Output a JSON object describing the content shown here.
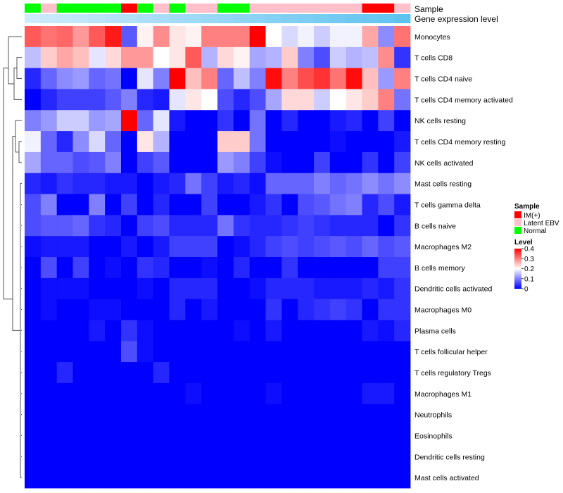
{
  "chart_data": {
    "type": "heatmap",
    "annotation_labels": [
      "Sample",
      "Gene expression level"
    ],
    "sample_legend": {
      "title": "Sample",
      "entries": [
        {
          "name": "IM(+)",
          "color": "#ff0000"
        },
        {
          "name": "Latent EBV",
          "color": "#ffc0cb"
        },
        {
          "name": "Normal",
          "color": "#00ff00"
        }
      ]
    },
    "color_legend": {
      "title": "Level",
      "ticks": [
        "0.4",
        "0.3",
        "0.2",
        "0.1",
        "0"
      ],
      "range": [
        0,
        0.4
      ],
      "colors": {
        "low": "#0000ff",
        "mid": "#ffffff",
        "high": "#ff0000"
      }
    },
    "sample_groups": [
      "Normal",
      "Latent EBV",
      "Normal",
      "Normal",
      "Normal",
      "Normal",
      "IM(+)",
      "Normal",
      "Latent EBV",
      "Normal",
      "Latent EBV",
      "Latent EBV",
      "Normal",
      "Normal",
      "Latent EBV",
      "Latent EBV",
      "Latent EBV",
      "Latent EBV",
      "Latent EBV",
      "Latent EBV",
      "Latent EBV",
      "IM(+)",
      "IM(+)",
      "Latent EBV"
    ],
    "expression_level": [
      0.05,
      0.07,
      0.09,
      0.11,
      0.13,
      0.15,
      0.17,
      0.19,
      0.21,
      0.23,
      0.25,
      0.27,
      0.29,
      0.31,
      0.33,
      0.35,
      0.37,
      0.39,
      0.41,
      0.43,
      0.45,
      0.47,
      0.49,
      0.51
    ],
    "rows": [
      "Monocytes",
      "T cells CD8",
      "T cells CD4 naive",
      "T cells CD4 memory activated",
      "NK cells resting",
      "T cells CD4 memory resting",
      "NK cells activated",
      "Mast cells resting",
      "T cells gamma delta",
      "B cells naive",
      "Macrophages M2",
      "B cells memory",
      "Dendritic cells activated",
      "Macrophages M0",
      "Plasma cells",
      "T cells follicular helper",
      "T cells regulatory  Tregs",
      "Macrophages M1",
      "Neutrophils",
      "Eosinophils",
      "Dendritic cells resting",
      "Mast cells activated"
    ],
    "values": [
      [
        0.33,
        0.31,
        0.32,
        0.28,
        0.33,
        0.38,
        0.07,
        0.21,
        0.29,
        0.22,
        0.21,
        0.3,
        0.3,
        0.3,
        0.4,
        0.2,
        0.17,
        0.19,
        0.16,
        0.19,
        0.19,
        0.27,
        0.11,
        0.31
      ],
      [
        0.15,
        0.24,
        0.27,
        0.25,
        0.18,
        0.23,
        0.28,
        0.28,
        0.2,
        0.22,
        0.33,
        0.14,
        0.23,
        0.21,
        0.13,
        0.14,
        0.24,
        0.1,
        0.06,
        0.16,
        0.14,
        0.15,
        0.29,
        0.04
      ],
      [
        0.03,
        0.08,
        0.11,
        0.12,
        0.08,
        0.09,
        0.0,
        0.18,
        0.1,
        0.4,
        0.25,
        0.3,
        0.08,
        0.15,
        0.1,
        0.39,
        0.3,
        0.34,
        0.36,
        0.31,
        0.39,
        0.25,
        0.12,
        0.3
      ],
      [
        0.0,
        0.03,
        0.05,
        0.05,
        0.05,
        0.07,
        0.1,
        0.03,
        0.02,
        0.18,
        0.22,
        0.2,
        0.06,
        0.03,
        0.06,
        0.13,
        0.23,
        0.23,
        0.16,
        0.2,
        0.22,
        0.24,
        0.3,
        0.09
      ],
      [
        0.1,
        0.12,
        0.16,
        0.16,
        0.12,
        0.13,
        0.4,
        0.08,
        0.18,
        0.02,
        0.0,
        0.0,
        0.04,
        0.0,
        0.09,
        0.0,
        0.03,
        0.0,
        0.0,
        0.02,
        0.03,
        0.0,
        0.05,
        0.0
      ],
      [
        0.19,
        0.08,
        0.03,
        0.11,
        0.17,
        0.08,
        0.0,
        0.22,
        0.14,
        0.0,
        0.0,
        0.0,
        0.24,
        0.24,
        0.09,
        0.0,
        0.0,
        0.0,
        0.0,
        0.01,
        0.0,
        0.0,
        0.0,
        0.02
      ],
      [
        0.13,
        0.08,
        0.08,
        0.06,
        0.07,
        0.1,
        0.0,
        0.05,
        0.07,
        0.0,
        0.0,
        0.0,
        0.12,
        0.1,
        0.05,
        0.01,
        0.0,
        0.0,
        0.05,
        0.0,
        0.0,
        0.04,
        0.0,
        0.05
      ],
      [
        0.03,
        0.02,
        0.04,
        0.03,
        0.03,
        0.02,
        0.02,
        0.0,
        0.02,
        0.03,
        0.09,
        0.05,
        0.02,
        0.03,
        0.01,
        0.08,
        0.08,
        0.08,
        0.1,
        0.08,
        0.09,
        0.11,
        0.09,
        0.11
      ],
      [
        0.06,
        0.1,
        0.0,
        0.0,
        0.1,
        0.0,
        0.05,
        0.0,
        0.03,
        0.0,
        0.0,
        0.05,
        0.0,
        0.0,
        0.02,
        0.04,
        0.0,
        0.06,
        0.07,
        0.09,
        0.1,
        0.03,
        0.06,
        0.02
      ],
      [
        0.06,
        0.07,
        0.07,
        0.08,
        0.04,
        0.03,
        0.0,
        0.05,
        0.06,
        0.03,
        0.03,
        0.03,
        0.09,
        0.04,
        0.03,
        0.03,
        0.04,
        0.05,
        0.04,
        0.03,
        0.03,
        0.03,
        0.0,
        0.04
      ],
      [
        0.01,
        0.02,
        0.02,
        0.02,
        0.0,
        0.0,
        0.02,
        0.0,
        0.02,
        0.05,
        0.05,
        0.05,
        0.0,
        0.01,
        0.03,
        0.05,
        0.06,
        0.05,
        0.06,
        0.07,
        0.06,
        0.08,
        0.06,
        0.07
      ],
      [
        0.0,
        0.06,
        0.0,
        0.05,
        0.0,
        0.01,
        0.0,
        0.04,
        0.03,
        0.0,
        0.0,
        0.01,
        0.0,
        0.03,
        0.0,
        0.0,
        0.04,
        0.0,
        0.0,
        0.0,
        0.0,
        0.0,
        0.05,
        0.05
      ],
      [
        0.0,
        0.01,
        0.01,
        0.01,
        0.0,
        0.0,
        0.0,
        0.01,
        0.0,
        0.03,
        0.03,
        0.03,
        0.0,
        0.0,
        0.01,
        0.03,
        0.03,
        0.03,
        0.02,
        0.02,
        0.02,
        0.03,
        0.02,
        0.04
      ],
      [
        0.0,
        0.01,
        0.0,
        0.0,
        0.01,
        0.01,
        0.0,
        0.0,
        0.0,
        0.03,
        0.0,
        0.02,
        0.0,
        0.0,
        0.0,
        0.04,
        0.0,
        0.03,
        0.04,
        0.05,
        0.04,
        0.0,
        0.04,
        0.04
      ],
      [
        0.0,
        0.0,
        0.0,
        0.0,
        0.02,
        0.0,
        0.04,
        0.01,
        0.0,
        0.0,
        0.0,
        0.0,
        0.0,
        0.01,
        0.0,
        0.02,
        0.0,
        0.0,
        0.0,
        0.0,
        0.0,
        0.02,
        0.01,
        0.03
      ],
      [
        0.0,
        0.0,
        0.0,
        0.0,
        0.0,
        0.0,
        0.06,
        0.01,
        0.0,
        0.0,
        0.0,
        0.0,
        0.0,
        0.0,
        0.0,
        0.0,
        0.0,
        0.0,
        0.0,
        0.0,
        0.0,
        0.0,
        0.0,
        0.0
      ],
      [
        0.0,
        0.0,
        0.03,
        0.0,
        0.0,
        0.0,
        0.0,
        0.0,
        0.03,
        0.0,
        0.0,
        0.0,
        0.0,
        0.0,
        0.0,
        0.0,
        0.0,
        0.0,
        0.0,
        0.0,
        0.0,
        0.0,
        0.0,
        0.0
      ],
      [
        0.0,
        0.0,
        0.0,
        0.0,
        0.0,
        0.0,
        0.0,
        0.0,
        0.0,
        0.0,
        0.01,
        0.0,
        0.0,
        0.0,
        0.0,
        0.01,
        0.0,
        0.0,
        0.0,
        0.0,
        0.0,
        0.02,
        0.02,
        0.0
      ],
      [
        0.0,
        0.0,
        0.0,
        0.0,
        0.0,
        0.0,
        0.0,
        0.0,
        0.0,
        0.0,
        0.0,
        0.0,
        0.0,
        0.0,
        0.0,
        0.0,
        0.0,
        0.0,
        0.0,
        0.0,
        0.0,
        0.0,
        0.0,
        0.0
      ],
      [
        0.0,
        0.0,
        0.0,
        0.0,
        0.0,
        0.0,
        0.0,
        0.0,
        0.0,
        0.0,
        0.0,
        0.0,
        0.0,
        0.0,
        0.0,
        0.0,
        0.0,
        0.0,
        0.0,
        0.0,
        0.0,
        0.0,
        0.0,
        0.0
      ],
      [
        0.0,
        0.0,
        0.0,
        0.0,
        0.0,
        0.0,
        0.0,
        0.0,
        0.0,
        0.0,
        0.0,
        0.0,
        0.0,
        0.0,
        0.0,
        0.0,
        0.0,
        0.0,
        0.0,
        0.0,
        0.0,
        0.0,
        0.0,
        0.0
      ],
      [
        0.0,
        0.0,
        0.0,
        0.0,
        0.0,
        0.0,
        0.0,
        0.0,
        0.0,
        0.0,
        0.0,
        0.0,
        0.0,
        0.0,
        0.0,
        0.0,
        0.0,
        0.0,
        0.0,
        0.0,
        0.0,
        0.0,
        0.0,
        0.0
      ]
    ]
  }
}
